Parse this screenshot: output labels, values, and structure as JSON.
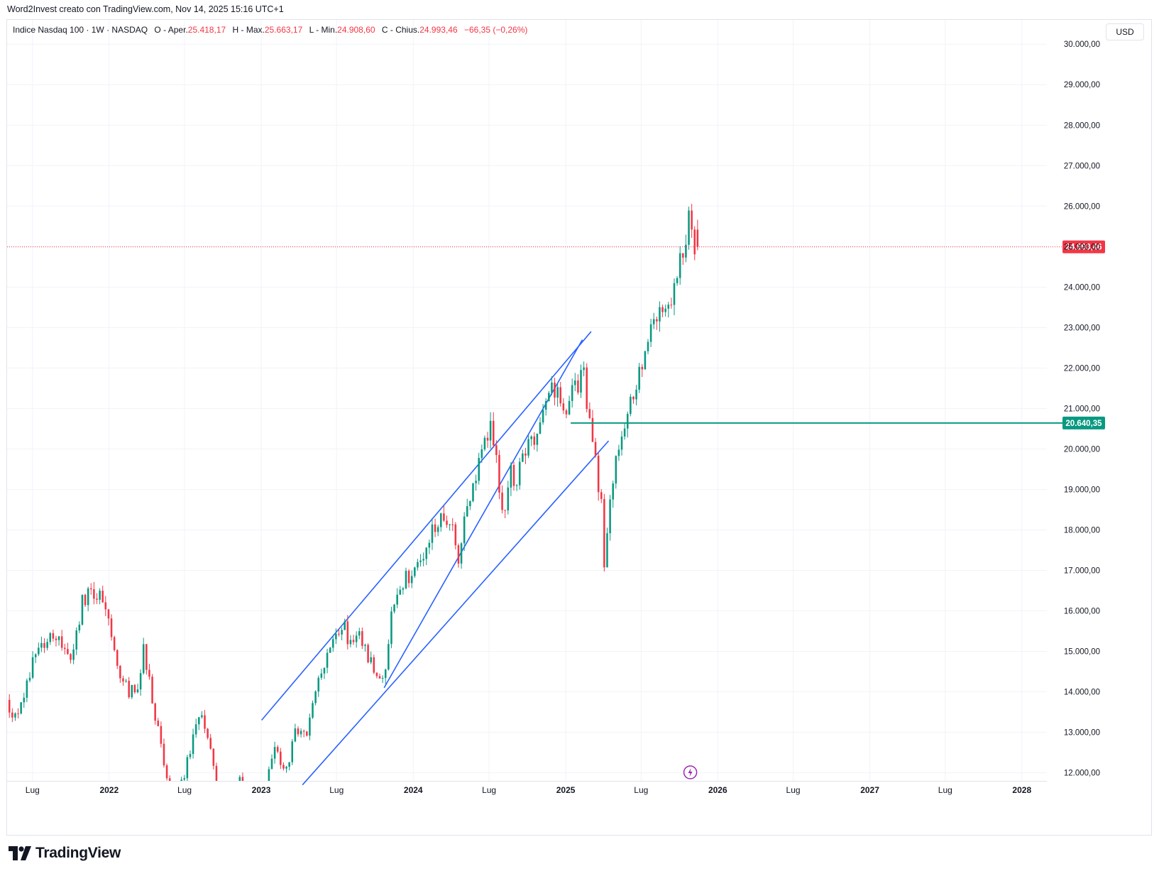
{
  "header": {
    "attribution": "Word2Invest creato con TradingView.com, Nov 14, 2025 15:16 UTC+1"
  },
  "legend": {
    "symbol": "Indice Nasdaq 100 · 1W · NASDAQ",
    "open_label": "O - Aper.",
    "open": "25.418,17",
    "high_label": "H - Max.",
    "high": "25.663,17",
    "low_label": "L - Min.",
    "low": "24.908,60",
    "close_label": "C - Chius.",
    "close": "24.993,46",
    "change": "−66,35 (−0,26%)"
  },
  "currency_button": "USD",
  "brand": {
    "name": "TradingView"
  },
  "colors": {
    "up": "#089981",
    "down": "#f23645",
    "trendline": "#2962ff",
    "level_line": "#089981",
    "grid": "#f0f3fa",
    "axis_text": "#131722"
  },
  "chart_data": {
    "type": "candlestick",
    "title": "",
    "timeframe": "1W",
    "grid": true,
    "x_range": [
      "2021-05-01",
      "2028-03-01"
    ],
    "ylim": [
      11800,
      30600
    ],
    "y_ticks": [
      12000,
      13000,
      14000,
      15000,
      16000,
      17000,
      18000,
      19000,
      20000,
      21000,
      22000,
      23000,
      24000,
      25000,
      26000,
      27000,
      28000,
      29000,
      30000
    ],
    "y_tick_labels": [
      "12.000,00",
      "13.000,00",
      "14.000,00",
      "15.000,00",
      "16.000,00",
      "17.000,00",
      "18.000,00",
      "19.000,00",
      "20.000,00",
      "21.000,00",
      "22.000,00",
      "23.000,00",
      "24.000,00",
      "25.000,00",
      "26.000,00",
      "27.000,00",
      "28.000,00",
      "29.000,00",
      "30.000,00"
    ],
    "x_ticks": [
      {
        "date": "2021-07-01",
        "label": "Lug",
        "bold": false
      },
      {
        "date": "2022-01-01",
        "label": "2022",
        "bold": true
      },
      {
        "date": "2022-07-01",
        "label": "Lug",
        "bold": false
      },
      {
        "date": "2023-01-01",
        "label": "2023",
        "bold": true
      },
      {
        "date": "2023-07-01",
        "label": "Lug",
        "bold": false
      },
      {
        "date": "2024-01-01",
        "label": "2024",
        "bold": true
      },
      {
        "date": "2024-07-01",
        "label": "Lug",
        "bold": false
      },
      {
        "date": "2025-01-01",
        "label": "2025",
        "bold": true
      },
      {
        "date": "2025-07-01",
        "label": "Lug",
        "bold": false
      },
      {
        "date": "2026-01-01",
        "label": "2026",
        "bold": true
      },
      {
        "date": "2026-07-01",
        "label": "Lug",
        "bold": false
      },
      {
        "date": "2027-01-01",
        "label": "2027",
        "bold": true
      },
      {
        "date": "2027-07-01",
        "label": "Lug",
        "bold": false
      },
      {
        "date": "2028-01-01",
        "label": "2028",
        "bold": true
      }
    ],
    "price_anchors": [
      [
        "2021-05-03",
        13800
      ],
      [
        "2021-05-24",
        13300
      ],
      [
        "2021-06-14",
        14000
      ],
      [
        "2021-07-05",
        14700
      ],
      [
        "2021-08-02",
        15100
      ],
      [
        "2021-09-06",
        15500
      ],
      [
        "2021-10-04",
        14600
      ],
      [
        "2021-11-01",
        16200
      ],
      [
        "2021-11-22",
        16500
      ],
      [
        "2021-12-20",
        16300
      ],
      [
        "2022-01-03",
        15600
      ],
      [
        "2022-01-24",
        14500
      ],
      [
        "2022-02-21",
        14000
      ],
      [
        "2022-03-14",
        14200
      ],
      [
        "2022-03-28",
        15000
      ],
      [
        "2022-04-25",
        13400
      ],
      [
        "2022-05-16",
        12200
      ],
      [
        "2022-06-13",
        11200
      ],
      [
        "2022-07-04",
        12000
      ],
      [
        "2022-07-25",
        12800
      ],
      [
        "2022-08-15",
        13600
      ],
      [
        "2022-09-05",
        12600
      ],
      [
        "2022-09-26",
        11400
      ],
      [
        "2022-10-10",
        10700
      ],
      [
        "2022-11-07",
        11700
      ],
      [
        "2022-11-28",
        11800
      ],
      [
        "2022-12-26",
        10900
      ],
      [
        "2023-01-16",
        11600
      ],
      [
        "2023-02-06",
        12600
      ],
      [
        "2023-03-06",
        12000
      ],
      [
        "2023-03-27",
        13000
      ],
      [
        "2023-04-24",
        13100
      ],
      [
        "2023-05-22",
        14200
      ],
      [
        "2023-06-19",
        15000
      ],
      [
        "2023-07-17",
        15700
      ],
      [
        "2023-08-07",
        15200
      ],
      [
        "2023-08-28",
        15300
      ],
      [
        "2023-09-25",
        14700
      ],
      [
        "2023-10-23",
        14200
      ],
      [
        "2023-11-13",
        15800
      ],
      [
        "2023-12-11",
        16700
      ],
      [
        "2024-01-08",
        17000
      ],
      [
        "2024-01-29",
        17500
      ],
      [
        "2024-02-19",
        17900
      ],
      [
        "2024-03-11",
        18300
      ],
      [
        "2024-04-01",
        18200
      ],
      [
        "2024-04-22",
        17300
      ],
      [
        "2024-05-13",
        18500
      ],
      [
        "2024-06-10",
        19600
      ],
      [
        "2024-07-08",
        20500
      ],
      [
        "2024-07-22",
        19600
      ],
      [
        "2024-08-05",
        18300
      ],
      [
        "2024-08-26",
        19500
      ],
      [
        "2024-09-09",
        19100
      ],
      [
        "2024-09-30",
        20100
      ],
      [
        "2024-10-21",
        20200
      ],
      [
        "2024-11-11",
        20700
      ],
      [
        "2024-12-02",
        21500
      ],
      [
        "2024-12-16",
        21400
      ],
      [
        "2025-01-06",
        20900
      ],
      [
        "2025-01-27",
        21500
      ],
      [
        "2025-02-17",
        21900
      ],
      [
        "2025-03-03",
        20600
      ],
      [
        "2025-03-17",
        19800
      ],
      [
        "2025-03-31",
        18600
      ],
      [
        "2025-04-07",
        17300
      ],
      [
        "2025-04-21",
        18800
      ],
      [
        "2025-05-05",
        19700
      ],
      [
        "2025-05-12",
        20100
      ],
      [
        "2025-06-02",
        20900
      ],
      [
        "2025-06-30",
        21800
      ],
      [
        "2025-07-28",
        22800
      ],
      [
        "2025-08-18",
        23200
      ],
      [
        "2025-09-08",
        23600
      ],
      [
        "2025-09-29",
        24400
      ],
      [
        "2025-10-13",
        24700
      ],
      [
        "2025-10-27",
        25800
      ],
      [
        "2025-11-03",
        25400
      ],
      [
        "2025-11-10",
        24993
      ]
    ],
    "last_candle": {
      "date": "2025-11-10",
      "open": 25418.17,
      "high": 25663.17,
      "low": 24908.6,
      "close": 24993.46
    },
    "last_price": {
      "value": 24993.46,
      "label": "24.993,46"
    },
    "horizontal_level": {
      "value": 20640.35,
      "label": "20.640,35",
      "start_date": "2025-01-13"
    },
    "trendlines": [
      {
        "name": "channel-upper",
        "from": [
          "2023-01-02",
          13300
        ],
        "to": [
          "2025-03-03",
          22900
        ]
      },
      {
        "name": "channel-lower",
        "from": [
          "2023-04-10",
          11700
        ],
        "to": [
          "2025-04-14",
          20200
        ]
      },
      {
        "name": "steep-support",
        "from": [
          "2023-10-23",
          14100
        ],
        "to": [
          "2025-02-10",
          22700
        ]
      }
    ]
  }
}
